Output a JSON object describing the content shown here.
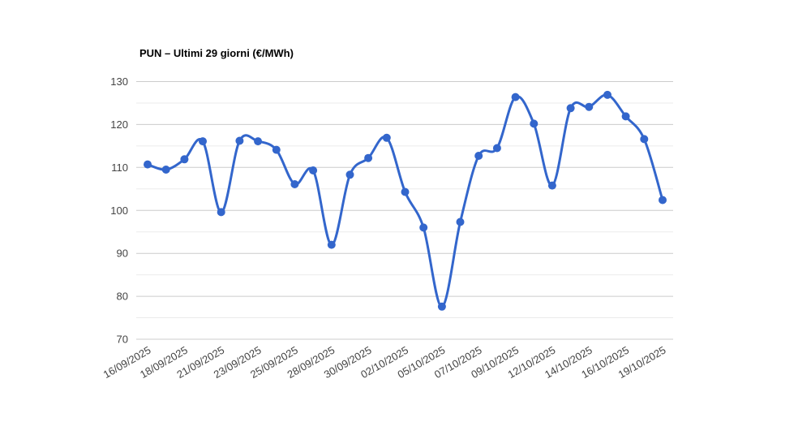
{
  "chart": {
    "title": "PUN – Ultimi 29 giorni (€/MWh)",
    "colors": {
      "line": "#3366cc",
      "point": "#3366cc",
      "grid_major": "#cccccc",
      "grid_minor": "#ebebeb",
      "axis_text": "#444444",
      "title_text": "#000000",
      "background": "#ffffff"
    }
  },
  "chart_data": {
    "type": "line",
    "title": "PUN – Ultimi 29 giorni (€/MWh)",
    "xlabel": "",
    "ylabel": "",
    "unit": "€/MWh",
    "curve": "smooth",
    "legend": "none",
    "grid": true,
    "ylim": [
      70,
      130
    ],
    "y_major_ticks": [
      70,
      80,
      90,
      100,
      110,
      120,
      130
    ],
    "y_minor_ticks": [
      75,
      85,
      95,
      105,
      115,
      125
    ],
    "x_tick_every": 2,
    "x_tick_labels": [
      "16/09/2025",
      "18/09/2025",
      "21/09/2025",
      "23/09/2025",
      "25/09/2025",
      "28/09/2025",
      "30/09/2025",
      "02/10/2025",
      "05/10/2025",
      "07/10/2025",
      "09/10/2025",
      "12/10/2025",
      "14/10/2025",
      "16/10/2025",
      "19/10/2025"
    ],
    "values": [
      110.7,
      109.5,
      111.9,
      116.1,
      99.6,
      116.2,
      116.1,
      114.1,
      106.1,
      109.3,
      92.0,
      108.3,
      112.2,
      116.9,
      104.3,
      96.0,
      77.6,
      97.3,
      112.7,
      114.5,
      126.4,
      120.2,
      105.8,
      123.8,
      124.1,
      126.9,
      121.9,
      116.6,
      102.4
    ]
  }
}
